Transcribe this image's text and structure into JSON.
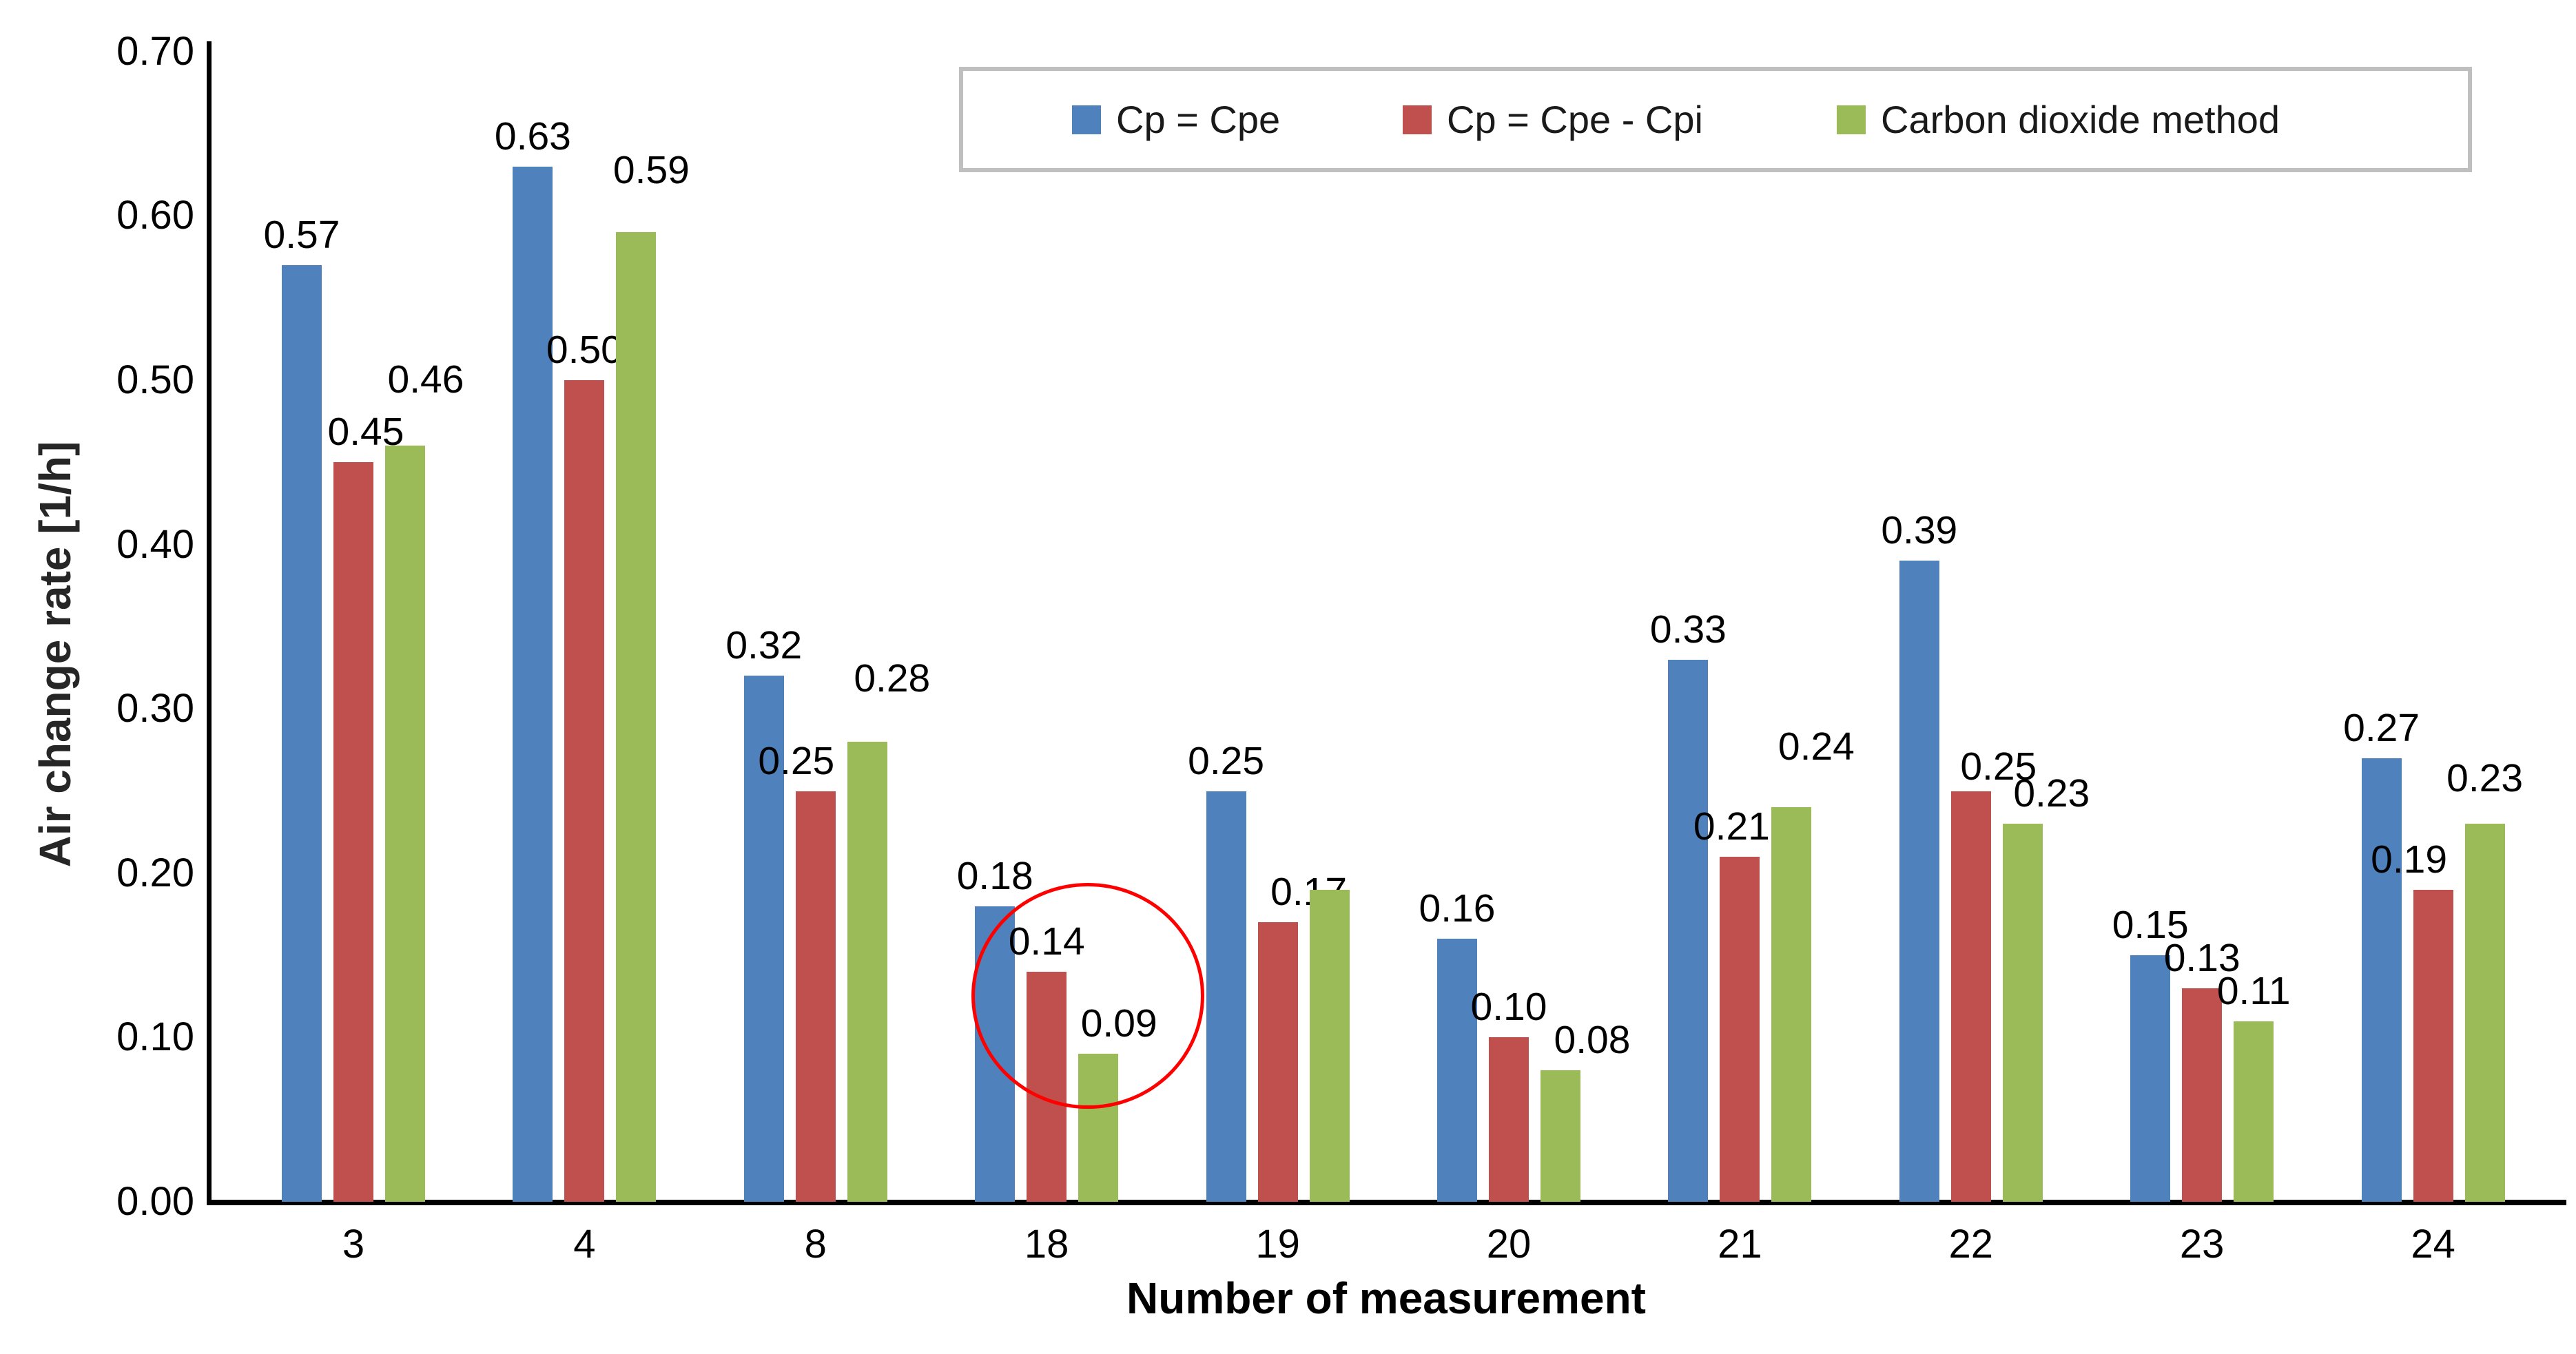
{
  "chart_data": {
    "type": "bar",
    "title": "",
    "xlabel": "Number of measurement",
    "ylabel": "Air change rate  [1/h]",
    "categories": [
      "3",
      "4",
      "8",
      "18",
      "19",
      "20",
      "21",
      "22",
      "23",
      "24"
    ],
    "series": [
      {
        "name": "Cp = Cpe",
        "color": "#4F81BD",
        "values": [
          0.57,
          0.63,
          0.32,
          0.18,
          0.25,
          0.16,
          0.33,
          0.39,
          0.15,
          0.27
        ],
        "labels": [
          "0.57",
          "0.63",
          "0.32",
          "0.18",
          "0.25",
          "0.16",
          "0.33",
          "0.39",
          "0.15",
          "0.27"
        ]
      },
      {
        "name": "Cp = Cpe - Cpi",
        "color": "#C0504D",
        "values": [
          0.45,
          0.5,
          0.25,
          0.14,
          0.17,
          0.1,
          0.21,
          0.25,
          0.13,
          0.19
        ],
        "labels": [
          "0.45",
          "0.50",
          "0.25",
          "0.14",
          "0.17",
          "0.10",
          "0.21",
          "0.25",
          "0.13",
          "0.19"
        ]
      },
      {
        "name": "Carbon dioxide method",
        "color": "#9BBB59",
        "values": [
          0.46,
          0.59,
          0.28,
          0.09,
          0.19,
          0.08,
          0.24,
          0.23,
          0.11,
          0.23
        ],
        "labels": [
          "0.46",
          "0.59",
          "0.28",
          "0.09",
          null,
          "0.08",
          "0.24",
          "0.23",
          "0.11",
          "0.23"
        ]
      }
    ],
    "ylim": [
      0.0,
      0.7
    ],
    "yticks": [
      "0.00",
      "0.10",
      "0.20",
      "0.30",
      "0.40",
      "0.50",
      "0.60",
      "0.70"
    ],
    "grid": false,
    "legend_position": "top",
    "annotation": {
      "shape": "ellipse",
      "color": "#FF0000",
      "target_category": "18",
      "target_series": [
        "Cp = Cpe - Cpi",
        "Carbon dioxide method"
      ],
      "note": "red ellipse circling the 0.14 and 0.09 bars of measurement 18"
    }
  }
}
